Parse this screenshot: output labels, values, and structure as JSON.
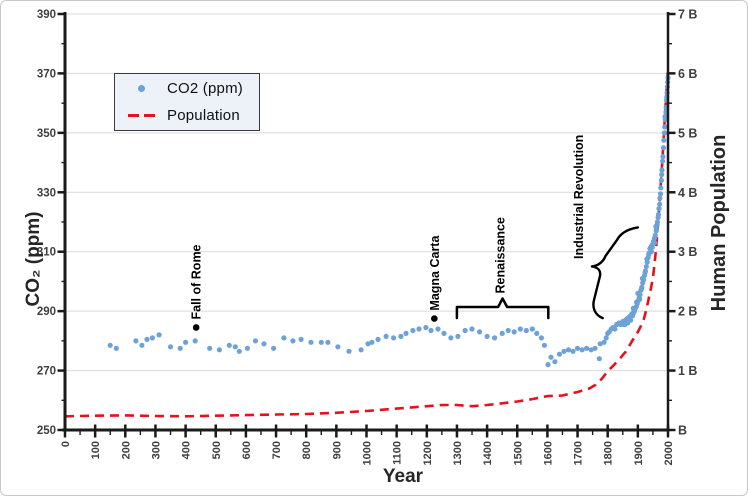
{
  "chart_data": {
    "type": "scatter",
    "title": "",
    "grid": "horizontal-only",
    "x_axis": {
      "label": "Year",
      "min": 0,
      "max": 2000,
      "major_tick": 100,
      "minor_tick": 50,
      "tick_labels": [
        "0",
        "100",
        "200",
        "300",
        "400",
        "500",
        "600",
        "700",
        "800",
        "900",
        "1000",
        "1100",
        "1200",
        "1300",
        "1400",
        "1500",
        "1600",
        "1700",
        "1800",
        "1900",
        "2000"
      ]
    },
    "y_left_axis": {
      "label": "CO₂ (ppm)",
      "min": 250,
      "max": 390,
      "major_tick": 20,
      "minor_tick": 10,
      "tick_labels": [
        "250",
        "270",
        "290",
        "310",
        "330",
        "350",
        "370",
        "390"
      ]
    },
    "y_right_axis": {
      "label": "Human Population",
      "min": 0,
      "max": 7,
      "major_tick": 1,
      "minor_tick": 0.5,
      "tick_labels": [
        "B",
        "1 B",
        "2 B",
        "3 B",
        "4 B",
        "5 B",
        "6 B",
        "7 B"
      ]
    },
    "legend": {
      "position": "top-left",
      "items": [
        {
          "label": "CO2 (ppm)",
          "marker": "dot",
          "color": "#6da2d9"
        },
        {
          "label": "Population",
          "marker": "dashed-line",
          "color": "#e8101c"
        }
      ]
    },
    "annotations": [
      {
        "label": "Fall of Rome",
        "type": "point",
        "year": 435,
        "co2": 284.5
      },
      {
        "label": "Magna Carta",
        "type": "point",
        "year": 1225,
        "co2": 287.5
      },
      {
        "label": "Renaissance",
        "type": "brace",
        "year_from": 1300,
        "year_to": 1603
      },
      {
        "label": "Industrial Revolution",
        "type": "diagonal-brace",
        "year_from": 1770,
        "year_to": 1900,
        "co2_from": 288,
        "co2_to": 318
      }
    ],
    "series": [
      {
        "name": "CO2 (ppm)",
        "type": "scatter",
        "axis": "left",
        "color": "#6da2d9",
        "points": [
          [
            150,
            278.5
          ],
          [
            170,
            277.5
          ],
          [
            235,
            280
          ],
          [
            255,
            278.5
          ],
          [
            272,
            280.5
          ],
          [
            290,
            281
          ],
          [
            312,
            282
          ],
          [
            350,
            278
          ],
          [
            382,
            277.5
          ],
          [
            400,
            279.5
          ],
          [
            432,
            280
          ],
          [
            480,
            277.5
          ],
          [
            512,
            277
          ],
          [
            545,
            278.5
          ],
          [
            565,
            278
          ],
          [
            578,
            276.5
          ],
          [
            605,
            277.5
          ],
          [
            632,
            280
          ],
          [
            660,
            279
          ],
          [
            692,
            277.5
          ],
          [
            726,
            281
          ],
          [
            756,
            280
          ],
          [
            783,
            280.5
          ],
          [
            816,
            279.5
          ],
          [
            850,
            279.5
          ],
          [
            872,
            279.5
          ],
          [
            905,
            278
          ],
          [
            942,
            276.5
          ],
          [
            982,
            277
          ],
          [
            1005,
            279
          ],
          [
            1018,
            279.5
          ],
          [
            1038,
            280.5
          ],
          [
            1065,
            281.5
          ],
          [
            1090,
            281
          ],
          [
            1114,
            281.5
          ],
          [
            1131,
            282.5
          ],
          [
            1154,
            283.5
          ],
          [
            1174,
            284
          ],
          [
            1197,
            284.5
          ],
          [
            1214,
            283.5
          ],
          [
            1237,
            284
          ],
          [
            1257,
            282.5
          ],
          [
            1280,
            281
          ],
          [
            1303,
            281.5
          ],
          [
            1327,
            283.5
          ],
          [
            1350,
            284
          ],
          [
            1375,
            283
          ],
          [
            1400,
            281.5
          ],
          [
            1425,
            281
          ],
          [
            1450,
            282.5
          ],
          [
            1470,
            283.5
          ],
          [
            1490,
            283
          ],
          [
            1510,
            284
          ],
          [
            1530,
            283.5
          ],
          [
            1550,
            284
          ],
          [
            1565,
            282.5
          ],
          [
            1580,
            281
          ],
          [
            1590,
            278.5
          ],
          [
            1602,
            272
          ],
          [
            1612,
            274.5
          ],
          [
            1625,
            273
          ],
          [
            1640,
            275.5
          ],
          [
            1655,
            276.5
          ],
          [
            1670,
            277
          ],
          [
            1685,
            276.5
          ],
          [
            1700,
            277.5
          ],
          [
            1715,
            277
          ],
          [
            1730,
            277.5
          ],
          [
            1745,
            277
          ],
          [
            1758,
            277.5
          ],
          [
            1772,
            274
          ],
          [
            1775,
            279
          ],
          [
            1788,
            279.5
          ],
          [
            1795,
            281
          ],
          [
            1800,
            282.5
          ],
          [
            1805,
            283
          ],
          [
            1812,
            284
          ],
          [
            1818,
            284.5
          ],
          [
            1824,
            284
          ],
          [
            1830,
            285.5
          ],
          [
            1837,
            286
          ],
          [
            1843,
            285.5
          ],
          [
            1850,
            286.5
          ],
          [
            1853,
            285.5
          ],
          [
            1856,
            286
          ],
          [
            1857,
            285.5
          ],
          [
            1859,
            287
          ],
          [
            1862,
            286.5
          ],
          [
            1865,
            287.5
          ],
          [
            1866,
            286
          ],
          [
            1868,
            287
          ],
          [
            1871,
            288
          ],
          [
            1874,
            287.5
          ],
          [
            1876,
            287
          ],
          [
            1877,
            288.5
          ],
          [
            1880,
            289
          ],
          [
            1883,
            288.5
          ],
          [
            1885,
            291
          ],
          [
            1886,
            289.5
          ],
          [
            1887,
            290.5
          ],
          [
            1889,
            290
          ],
          [
            1892,
            291
          ],
          [
            1895,
            291.5
          ],
          [
            1896,
            293
          ],
          [
            1898,
            292.5
          ],
          [
            1900,
            296
          ],
          [
            1901,
            293.5
          ],
          [
            1904,
            294.5
          ],
          [
            1906,
            294
          ],
          [
            1907,
            295.5
          ],
          [
            1910,
            297
          ],
          [
            1912,
            297.5
          ],
          [
            1913,
            298
          ],
          [
            1915,
            301
          ],
          [
            1916,
            299.5
          ],
          [
            1919,
            300.5
          ],
          [
            1922,
            302
          ],
          [
            1924,
            303
          ],
          [
            1925,
            303.5
          ],
          [
            1928,
            305
          ],
          [
            1930,
            307.5
          ],
          [
            1931,
            306.5
          ],
          [
            1934,
            308
          ],
          [
            1936,
            309
          ],
          [
            1937,
            309.5
          ],
          [
            1940,
            311
          ],
          [
            1943,
            311.5
          ],
          [
            1945,
            310
          ],
          [
            1946,
            312
          ],
          [
            1948,
            311.5
          ],
          [
            1949,
            312.5
          ],
          [
            1952,
            313.5
          ],
          [
            1955,
            314.5
          ],
          [
            1956,
            313
          ],
          [
            1958,
            315.5
          ],
          [
            1960,
            318.5
          ],
          [
            1961,
            317
          ],
          [
            1962,
            317.5
          ],
          [
            1964,
            319
          ],
          [
            1965,
            320
          ],
          [
            1967,
            321.5
          ],
          [
            1968,
            322.5
          ],
          [
            1970,
            324.5
          ],
          [
            1972,
            326
          ],
          [
            1973,
            328
          ],
          [
            1975,
            329.5
          ],
          [
            1976,
            331.5
          ],
          [
            1978,
            334
          ],
          [
            1979,
            336
          ],
          [
            1980,
            337.5
          ],
          [
            1982,
            340.5
          ],
          [
            1983,
            342
          ],
          [
            1985,
            345
          ],
          [
            1986,
            347.5
          ],
          [
            1988,
            350
          ],
          [
            1989,
            352
          ],
          [
            1990,
            355.5
          ],
          [
            1991,
            354.5
          ],
          [
            1993,
            357
          ],
          [
            1994,
            358.5
          ],
          [
            1995,
            361
          ],
          [
            1996,
            362
          ],
          [
            1997,
            363.5
          ],
          [
            1998,
            365.5
          ],
          [
            1999,
            367
          ],
          [
            2000,
            368.5
          ]
        ]
      },
      {
        "name": "Population",
        "type": "line",
        "line_style": "dashed",
        "axis": "right",
        "color": "#e8101c",
        "points": [
          [
            0,
            0.23
          ],
          [
            100,
            0.24
          ],
          [
            200,
            0.245
          ],
          [
            300,
            0.235
          ],
          [
            400,
            0.23
          ],
          [
            500,
            0.24
          ],
          [
            600,
            0.25
          ],
          [
            700,
            0.26
          ],
          [
            800,
            0.27
          ],
          [
            900,
            0.29
          ],
          [
            1000,
            0.32
          ],
          [
            1050,
            0.34
          ],
          [
            1100,
            0.36
          ],
          [
            1150,
            0.38
          ],
          [
            1200,
            0.4
          ],
          [
            1250,
            0.42
          ],
          [
            1300,
            0.42
          ],
          [
            1350,
            0.4
          ],
          [
            1400,
            0.42
          ],
          [
            1450,
            0.45
          ],
          [
            1500,
            0.48
          ],
          [
            1550,
            0.52
          ],
          [
            1600,
            0.57
          ],
          [
            1650,
            0.58
          ],
          [
            1700,
            0.64
          ],
          [
            1720,
            0.67
          ],
          [
            1740,
            0.7
          ],
          [
            1760,
            0.76
          ],
          [
            1780,
            0.86
          ],
          [
            1800,
            0.99
          ],
          [
            1820,
            1.09
          ],
          [
            1840,
            1.2
          ],
          [
            1850,
            1.26
          ],
          [
            1860,
            1.32
          ],
          [
            1870,
            1.4
          ],
          [
            1880,
            1.49
          ],
          [
            1890,
            1.57
          ],
          [
            1900,
            1.65
          ],
          [
            1910,
            1.75
          ],
          [
            1920,
            1.87
          ],
          [
            1930,
            2.07
          ],
          [
            1940,
            2.3
          ],
          [
            1950,
            2.55
          ],
          [
            1955,
            2.78
          ],
          [
            1960,
            3.02
          ],
          [
            1965,
            3.33
          ],
          [
            1970,
            3.7
          ],
          [
            1975,
            4.07
          ],
          [
            1980,
            4.44
          ],
          [
            1985,
            4.85
          ],
          [
            1990,
            5.31
          ],
          [
            1995,
            5.72
          ],
          [
            2000,
            6.08
          ]
        ]
      }
    ]
  }
}
